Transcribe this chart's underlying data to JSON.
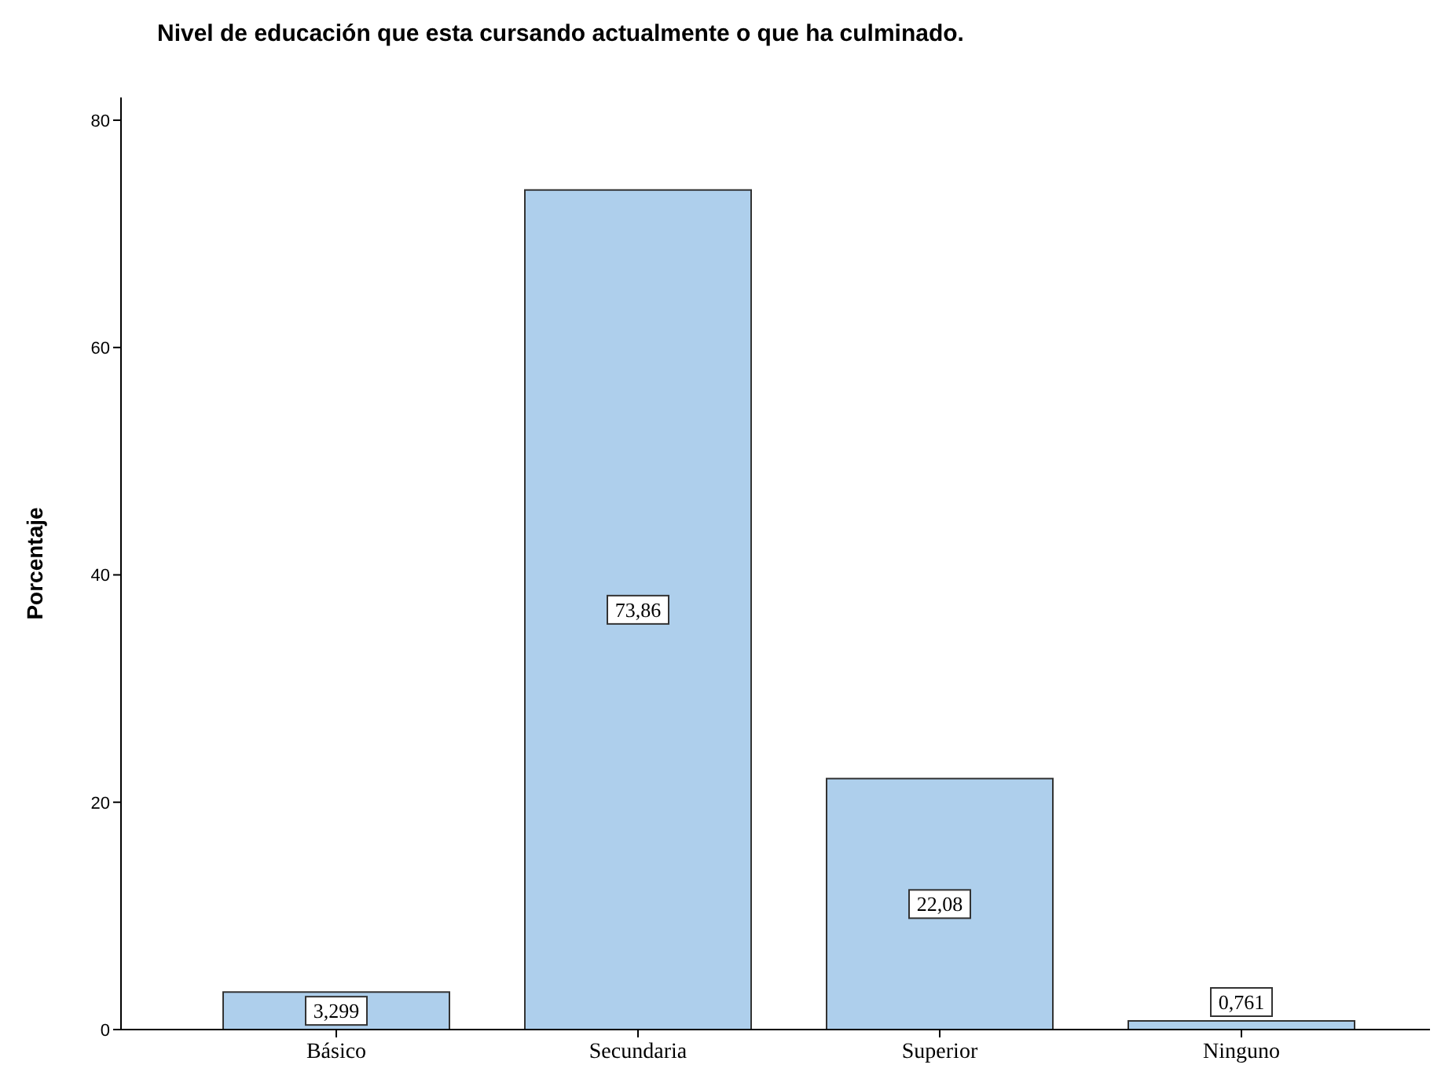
{
  "chart_data": {
    "type": "bar",
    "title": "Nivel de educación que esta cursando actualmente o que ha culminado.",
    "ylabel": "Porcentaje",
    "categories": [
      "Básico",
      "Secundaria",
      "Superior",
      "Ninguno"
    ],
    "values": [
      3.299,
      73.86,
      22.08,
      0.761
    ],
    "value_labels": [
      "3,299",
      "73,86",
      "22,08",
      "0,761"
    ],
    "color": "#aecfec",
    "ylim": [
      0,
      82
    ],
    "yticks": [
      0,
      20,
      40,
      60,
      80
    ],
    "grid": false
  }
}
